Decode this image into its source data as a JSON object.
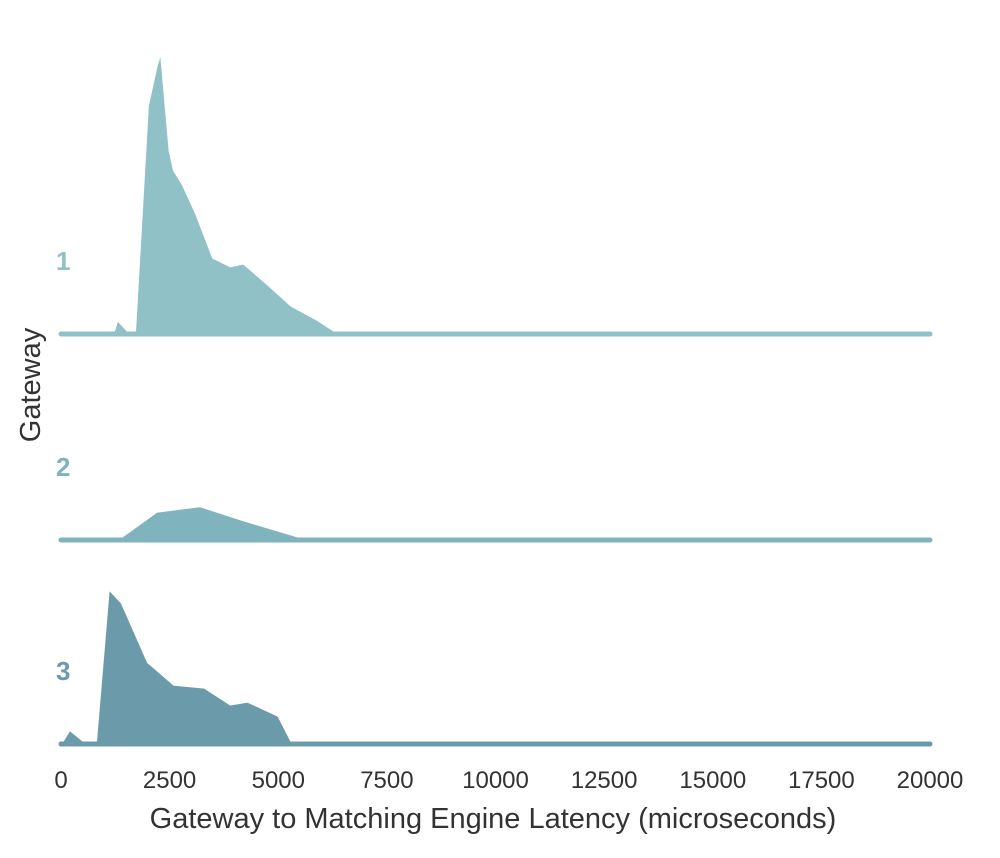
{
  "chart_data": {
    "type": "area",
    "subtype": "ridgeline",
    "title": "",
    "xlabel": "Gateway to Matching Engine Latency (microseconds)",
    "ylabel": "Gateway",
    "xlim": [
      0,
      20000
    ],
    "xticks": [
      0,
      2500,
      5000,
      7500,
      10000,
      12500,
      15000,
      17500,
      20000
    ],
    "grid": false,
    "legend": "none",
    "series": [
      {
        "name": "1",
        "color": "#8fc1c6",
        "x": [
          0,
          1200,
          1300,
          1600,
          1700,
          2000,
          2200,
          2300,
          2500,
          2600,
          2800,
          3100,
          3500,
          3900,
          4200,
          4800,
          5300,
          5900,
          6300,
          20000
        ],
        "y": [
          0,
          0,
          0.05,
          0,
          0,
          0.81,
          0.95,
          1.0,
          0.65,
          0.58,
          0.53,
          0.43,
          0.27,
          0.24,
          0.25,
          0.17,
          0.1,
          0.05,
          0.01,
          0
        ]
      },
      {
        "name": "2",
        "color": "#7fb3bd",
        "x": [
          0,
          1300,
          2200,
          3200,
          4200,
          5500,
          20000
        ],
        "y": [
          0,
          0,
          0.1,
          0.12,
          0.07,
          0.01,
          0
        ]
      },
      {
        "name": "3",
        "color": "#6b9aab",
        "x": [
          0,
          200,
          600,
          800,
          1100,
          1400,
          2000,
          2600,
          3300,
          3900,
          4300,
          5000,
          5300,
          20000
        ],
        "y": [
          0,
          0.05,
          0,
          0,
          0.55,
          0.5,
          0.29,
          0.21,
          0.2,
          0.14,
          0.15,
          0.1,
          0.01,
          0
        ]
      }
    ]
  }
}
